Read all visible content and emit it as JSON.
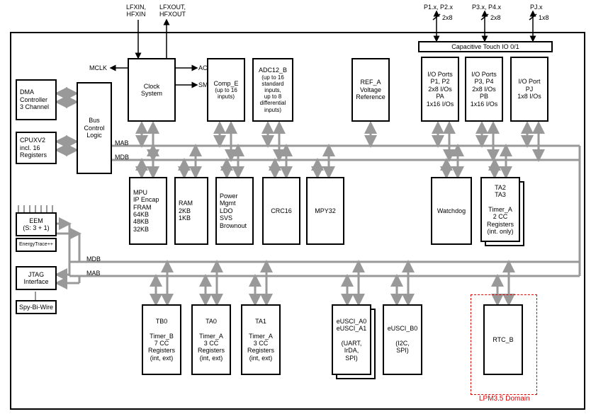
{
  "top_labels": {
    "clk_in": "LFXIN,\nHFXIN",
    "clk_out": "LFXOUT,\nHFXOUT",
    "p12": "P1.x, P2.x",
    "p12_spec": "2x8",
    "p34": "P3.x, P4.x",
    "p34_spec": "2x8",
    "pj": "PJ.x",
    "pj_spec": "1x8"
  },
  "clk_sig": {
    "mclk": "MCLK",
    "aclk": "ACLK",
    "smclk": "SMCLK"
  },
  "bus": {
    "mab": "MAB",
    "mdb": "MDB"
  },
  "left": {
    "dma": [
      "DMA",
      "Controller",
      "",
      "3 Channel"
    ],
    "cpu": [
      "CPUXV2",
      "incl. 16",
      "Registers"
    ],
    "eem": [
      "EEM",
      "(S: 3 + 1)"
    ],
    "etrace": [
      "EnergyTrace++"
    ],
    "jtag": [
      "JTAG",
      "Interface"
    ],
    "sbw": [
      "Spy-Bi-Wire"
    ]
  },
  "bcl": [
    "Bus",
    "Control",
    "Logic"
  ],
  "top_row": {
    "clock": [
      "Clock",
      "System"
    ],
    "compe": [
      "Comp_E",
      "",
      "(up to 16",
      "inputs)"
    ],
    "adc": [
      "ADC12_B",
      "",
      "(up to 16",
      "standard",
      "inputs,",
      "up to 8",
      "differential",
      "inputs)"
    ],
    "refa": [
      "REF_A",
      "",
      "Voltage",
      "Reference"
    ],
    "cap_title": "Capacitive Touch IO 0/1",
    "io12": [
      "I/O Ports",
      "P1, P2",
      "2x8 I/Os",
      "",
      "PA",
      "1x16 I/Os"
    ],
    "io34": [
      "I/O Ports",
      "P3, P4",
      "2x8 I/Os",
      "",
      "PB",
      "1x16 I/Os"
    ],
    "iopj": [
      "I/O Port",
      "PJ",
      "1x8 I/Os"
    ]
  },
  "mid_row": {
    "mpu": [
      "MPU",
      "IP Encap",
      "FRAM",
      "",
      "64KB",
      "48KB",
      "32KB"
    ],
    "ram": [
      "RAM",
      "",
      "2KB",
      "1KB"
    ],
    "pmm": [
      "Power",
      "Mgmt",
      "",
      "LDO",
      "SVS",
      "Brownout"
    ],
    "crc": [
      "CRC16"
    ],
    "mpy": [
      "MPY32"
    ],
    "wdt": [
      "Watchdog"
    ],
    "ta23_label": [
      "TA2",
      "TA3"
    ],
    "ta23": [
      "Timer_A",
      "2 CC",
      "Registers",
      "(int. only)"
    ]
  },
  "bot_row": {
    "tb0_label": "TB0",
    "tb0": [
      "Timer_B",
      "7 CC",
      "Registers",
      "(int, ext)"
    ],
    "ta0_label": "TA0",
    "ta0": [
      "Timer_A",
      "3 CC",
      "Registers",
      "(int, ext)"
    ],
    "ta1_label": "TA1",
    "ta1": [
      "Timer_A",
      "3 CC",
      "Registers",
      "(int, ext)"
    ],
    "eusci_a_label": [
      "eUSCI_A0",
      "eUSCI_A1"
    ],
    "eusci_a": [
      "(UART,",
      "IrDA,",
      "SPI)"
    ],
    "eusci_b_label": "eUSCI_B0",
    "eusci_b": [
      "(I2C,",
      "SPI)"
    ],
    "rtc": [
      "RTC_B"
    ]
  },
  "lpm": "LPM3.5 Domain",
  "colors": {
    "bus": "#999",
    "blk": "#000",
    "dash": "#d00"
  }
}
